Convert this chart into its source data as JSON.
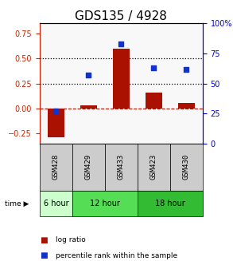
{
  "title": "GDS135 / 4928",
  "samples": [
    "GSM428",
    "GSM429",
    "GSM433",
    "GSM423",
    "GSM430"
  ],
  "log_ratio": [
    -0.285,
    0.03,
    0.595,
    0.16,
    0.055
  ],
  "percentile_rank": [
    27,
    57,
    83,
    63,
    62
  ],
  "time_groups": [
    {
      "label": "6 hour",
      "samples": [
        "GSM428"
      ],
      "color": "#ccffcc"
    },
    {
      "label": "12 hour",
      "samples": [
        "GSM429",
        "GSM433"
      ],
      "color": "#55dd55"
    },
    {
      "label": "18 hour",
      "samples": [
        "GSM423",
        "GSM430"
      ],
      "color": "#33bb33"
    }
  ],
  "bar_color": "#aa1100",
  "dot_color": "#1133cc",
  "left_axis_color": "#cc2200",
  "right_axis_color": "#0000cc",
  "ylim_left": [
    -0.35,
    0.85
  ],
  "ylim_right": [
    0,
    100
  ],
  "yticks_left": [
    -0.25,
    0.0,
    0.25,
    0.5,
    0.75
  ],
  "yticks_right": [
    0,
    25,
    50,
    75,
    100
  ],
  "hline_zero": 0.0,
  "dotted_lines": [
    0.25,
    0.5
  ],
  "bg_plot": "#f8f8f8",
  "bg_label": "#cccccc",
  "title_fontsize": 11,
  "tick_fontsize": 7,
  "label_fontsize": 7
}
